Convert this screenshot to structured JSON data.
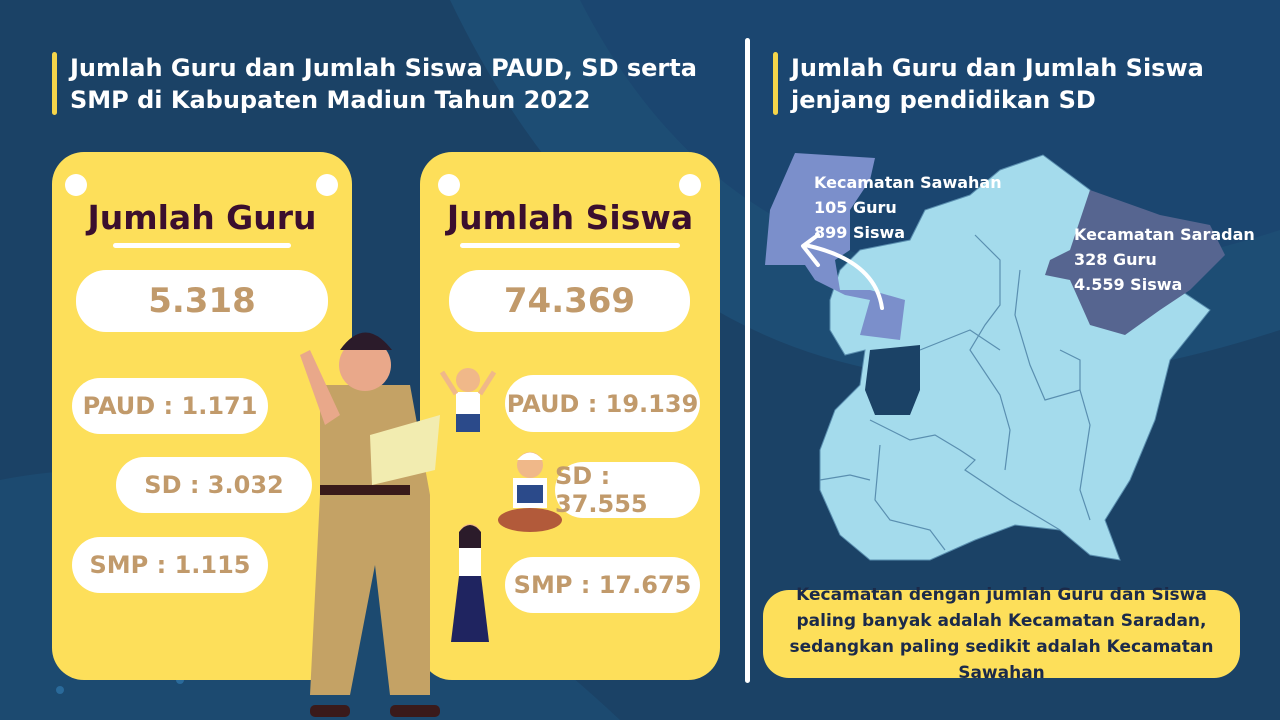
{
  "colors": {
    "background": "#1b4266",
    "card": "#fddf5a",
    "accent_bar": "#f5d54a",
    "value_text": "#c19a6b",
    "card_title": "#3b0f2e",
    "map_base": "#a4dbec",
    "map_sawahan": "#7b8fcb",
    "map_saradan": "#566590"
  },
  "left": {
    "title": "Jumlah Guru dan Jumlah Siswa PAUD, SD serta SMP di Kabupaten Madiun Tahun 2022",
    "guru": {
      "title": "Jumlah Guru",
      "total": "5.318",
      "paud": "PAUD : 1.171",
      "sd": "SD : 3.032",
      "smp": "SMP : 1.115"
    },
    "siswa": {
      "title": "Jumlah Siswa",
      "total": "74.369",
      "paud": "PAUD : 19.139",
      "sd": "SD : 37.555",
      "smp": "SMP : 17.675"
    }
  },
  "right": {
    "title": "Jumlah Guru dan Jumlah Siswa jenjang pendidikan SD",
    "sawahan": {
      "name": "Kecamatan Sawahan",
      "guru": "105 Guru",
      "siswa": "899 Siswa"
    },
    "saradan": {
      "name": "Kecamatan Saradan",
      "guru": "328 Guru",
      "siswa": "4.559 Siswa"
    },
    "note": "Kecamatan dengan jumlah Guru dan Siswa paling banyak adalah Kecamatan Saradan, sedangkan paling sedikit adalah Kecamatan Sawahan"
  }
}
